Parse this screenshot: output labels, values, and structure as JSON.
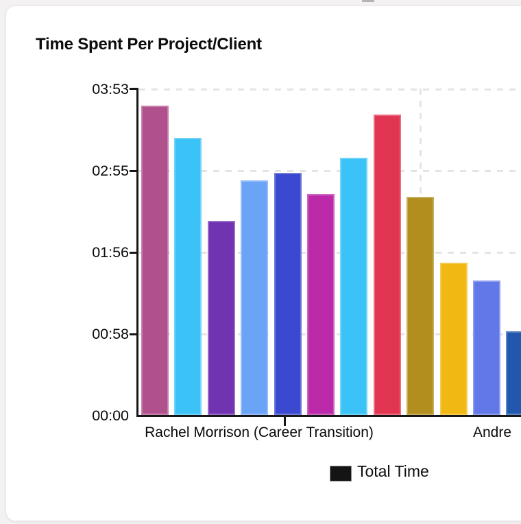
{
  "card": {
    "title": "Time Spent Per Project/Client"
  },
  "chart_data": {
    "type": "bar",
    "title": "Time Spent Per Project/Client",
    "ylabel": "",
    "xlabel": "",
    "grid": "dashed",
    "legend_position": "bottom",
    "legend": {
      "items": [
        {
          "label": "Total Time",
          "color": "#141414"
        }
      ]
    },
    "y_axis": {
      "tick_labels": [
        "03:53",
        "02:55",
        "01:56",
        "00:58",
        "00:00"
      ],
      "tick_minutes": [
        233,
        175,
        116,
        58,
        0
      ],
      "max_minutes": 233,
      "min_minutes": 0
    },
    "x_axis": {
      "visible_labels": [
        {
          "text": "Rachel Morrison (Career Transition)"
        },
        {
          "text": "Andre"
        }
      ]
    },
    "bars": [
      {
        "time": "3:41",
        "minutes": 221,
        "color": "#b0518e"
      },
      {
        "time": "3:18",
        "minutes": 198,
        "color": "#3bc3f8"
      },
      {
        "time": "2:19",
        "minutes": 139,
        "color": "#7233b2"
      },
      {
        "time": "2:48",
        "minutes": 168,
        "color": "#6ba3f7"
      },
      {
        "time": "2:53",
        "minutes": 173,
        "color": "#3a49cf"
      },
      {
        "time": "2:38",
        "minutes": 158,
        "color": "#bc29a9"
      },
      {
        "time": "3:04",
        "minutes": 184,
        "color": "#3bc3f8"
      },
      {
        "time": "3:35",
        "minutes": 215,
        "color": "#e23552"
      },
      {
        "time": "2:36",
        "minutes": 156,
        "color": "#b18e1d"
      },
      {
        "time": "1:49",
        "minutes": 109,
        "color": "#f1b713"
      },
      {
        "time": "1:36",
        "minutes": 96,
        "color": "#6277e8"
      },
      {
        "time": "1:00",
        "minutes": 60,
        "color": "#2158ad"
      }
    ]
  }
}
